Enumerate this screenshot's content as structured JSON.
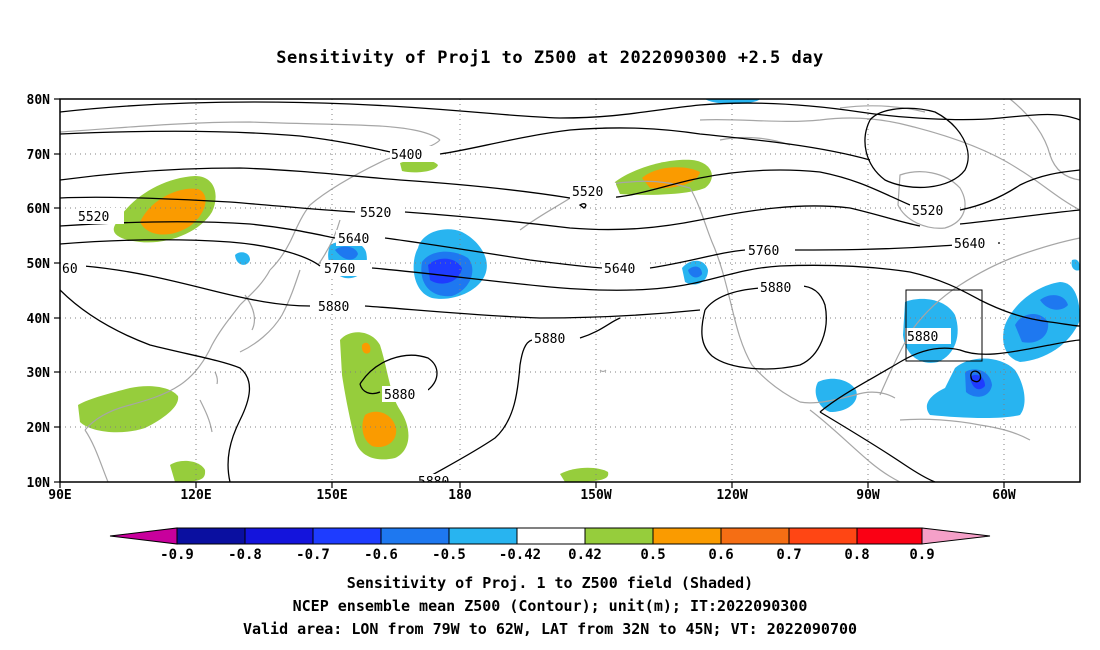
{
  "title": "Sensitivity of Proj1 to Z500 at 2022090300 +2.5 day",
  "map": {
    "type": "filled-contour map",
    "lon_range": [
      "90E",
      "60W"
    ],
    "lat_range": [
      "10N",
      "80N"
    ],
    "lat_labels": [
      "80N",
      "70N",
      "60N",
      "50N",
      "40N",
      "30N",
      "20N",
      "10N"
    ],
    "lon_labels": [
      "90E",
      "120E",
      "150E",
      "180",
      "150W",
      "120W",
      "90W",
      "60W"
    ],
    "contour_labels": [
      "5400",
      "5520",
      "5520",
      "5520",
      "5520",
      "5640",
      "5640",
      "5640",
      "5760",
      "5760",
      "5880",
      "5880",
      "5880",
      "5880",
      "5880",
      "5880",
      "60"
    ],
    "valid_area": {
      "lon": [
        "79W",
        "62W"
      ],
      "lat": [
        "32N",
        "45N"
      ]
    },
    "colors": {
      "coast": "#a6a6a6",
      "contour": "#000000",
      "grid": "#808080"
    }
  },
  "colorbar": {
    "labels": [
      "-0.9",
      "-0.8",
      "-0.7",
      "-0.6",
      "-0.5",
      "-0.42",
      "0.42",
      "0.5",
      "0.6",
      "0.7",
      "0.8",
      "0.9"
    ],
    "colors": [
      "#c8009c",
      "#0a0fa0",
      "#1414dc",
      "#1e3cff",
      "#1e78f0",
      "#28b4f0",
      "#ffffff",
      "#96cd3c",
      "#fa9b00",
      "#f56e14",
      "#ff4614",
      "#fa0014",
      "#f5a0c8"
    ]
  },
  "captions": [
    "Sensitivity of Proj. 1 to Z500 field (Shaded)",
    "NCEP ensemble mean Z500 (Contour); unit(m); IT:2022090300",
    "Valid area: LON from 79W to 62W, LAT from 32N to 45N; VT: 2022090700"
  ]
}
